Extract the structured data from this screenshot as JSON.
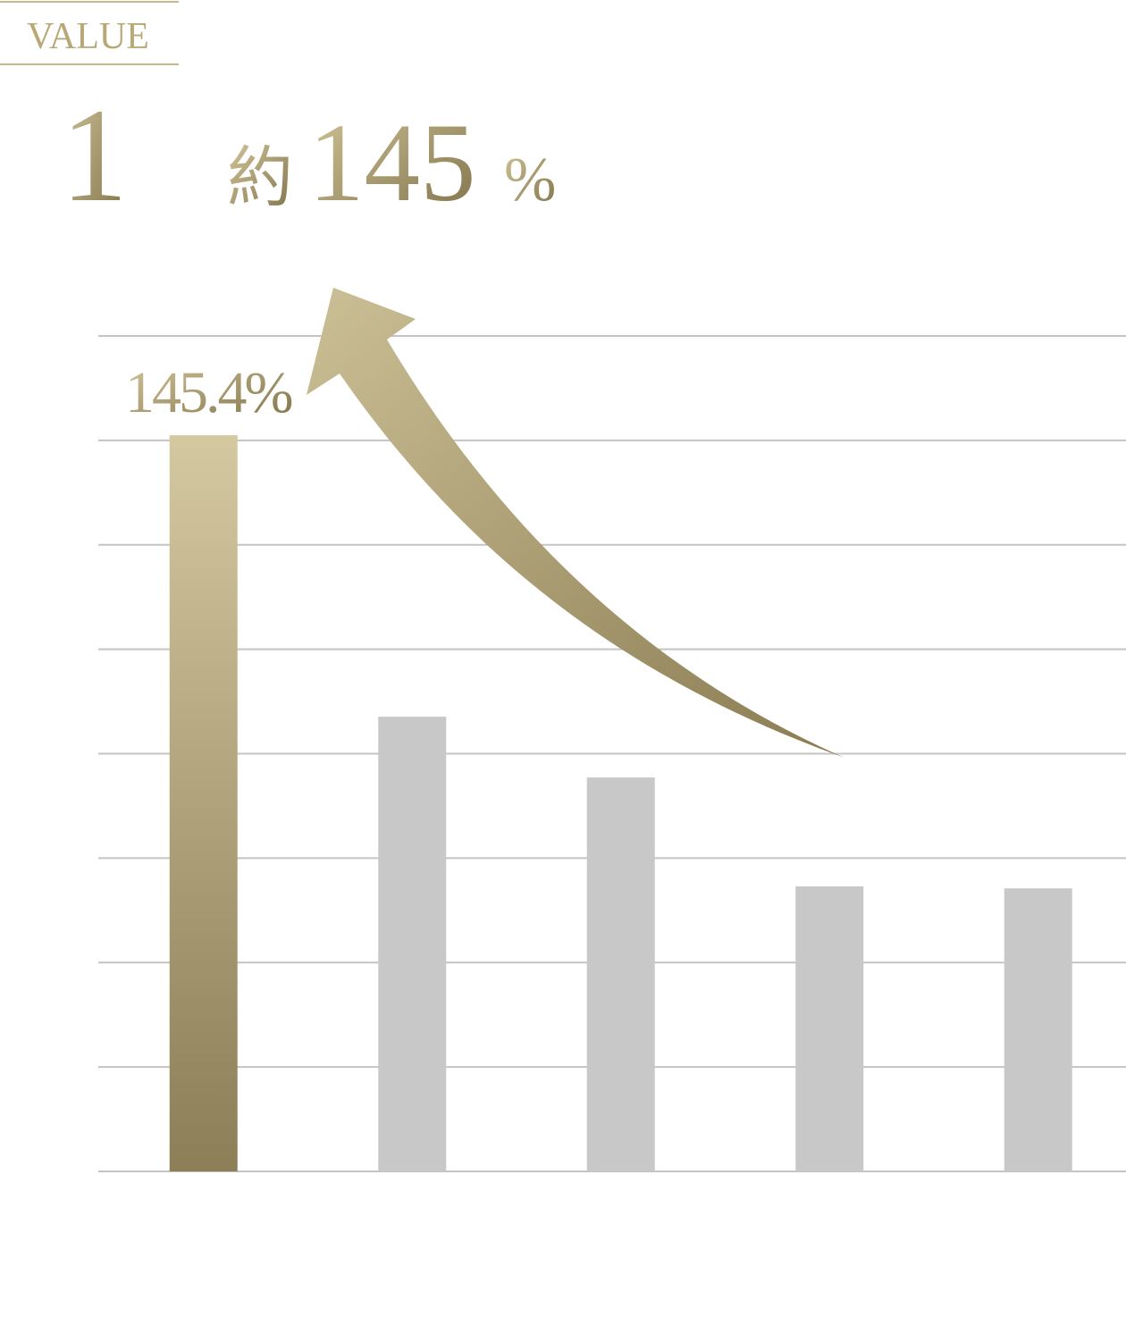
{
  "chart_data": {
    "type": "bar",
    "label": "VALUE",
    "number": "1",
    "headline_prefix": "約",
    "headline_value": "145",
    "headline_unit": "%",
    "categories": [
      null,
      null,
      null,
      null,
      null
    ],
    "values": [
      145.4,
      89.8,
      77.8,
      56.3,
      55.9
    ],
    "value_labels": [
      "145.4%",
      null,
      null,
      null,
      null
    ],
    "colors": [
      "#b3a579",
      "#c8c8c8",
      "#c8c8c8",
      "#c8c8c8",
      "#c8c8c8"
    ],
    "highlight_gradient": [
      "#d4c8a0",
      "#8c7e56"
    ],
    "ylim": [
      0,
      165
    ],
    "yticks": [
      0,
      20.625,
      41.25,
      61.875,
      82.5,
      103.125,
      123.75,
      144.375,
      165
    ],
    "grid": true
  }
}
